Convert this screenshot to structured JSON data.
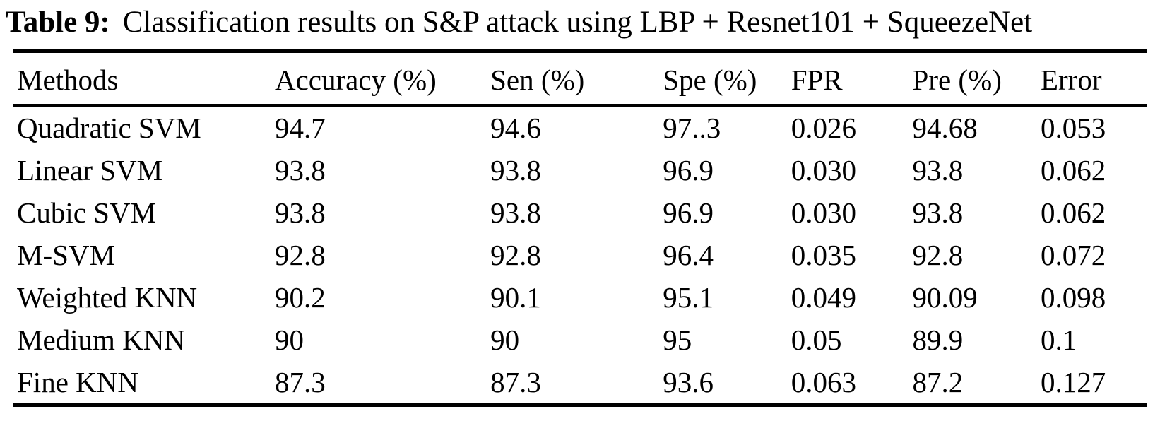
{
  "caption": {
    "label": "Table 9:",
    "text": "Classification results on S&P attack using LBP + Resnet101 + SqueezeNet"
  },
  "table": {
    "columns": [
      "Methods",
      "Accuracy (%)",
      "Sen (%)",
      "Spe (%)",
      "FPR",
      "Pre (%)",
      "Error"
    ],
    "rows": [
      [
        "Quadratic SVM",
        "94.7",
        "94.6",
        "97..3",
        "0.026",
        "94.68",
        "0.053"
      ],
      [
        "Linear SVM",
        "93.8",
        "93.8",
        "96.9",
        "0.030",
        "93.8",
        "0.062"
      ],
      [
        "Cubic SVM",
        "93.8",
        "93.8",
        "96.9",
        "0.030",
        "93.8",
        "0.062"
      ],
      [
        "M-SVM",
        "92.8",
        "92.8",
        "96.4",
        "0.035",
        "92.8",
        "0.072"
      ],
      [
        "Weighted KNN",
        "90.2",
        "90.1",
        "95.1",
        "0.049",
        "90.09",
        "0.098"
      ],
      [
        "Medium KNN",
        "90",
        "90",
        "95",
        "0.05",
        "89.9",
        "0.1"
      ],
      [
        "Fine KNN",
        "87.3",
        "87.3",
        "93.6",
        "0.063",
        "87.2",
        "0.127"
      ]
    ]
  },
  "colors": {
    "text": "#000000",
    "background": "#ffffff",
    "rule": "#000000"
  }
}
